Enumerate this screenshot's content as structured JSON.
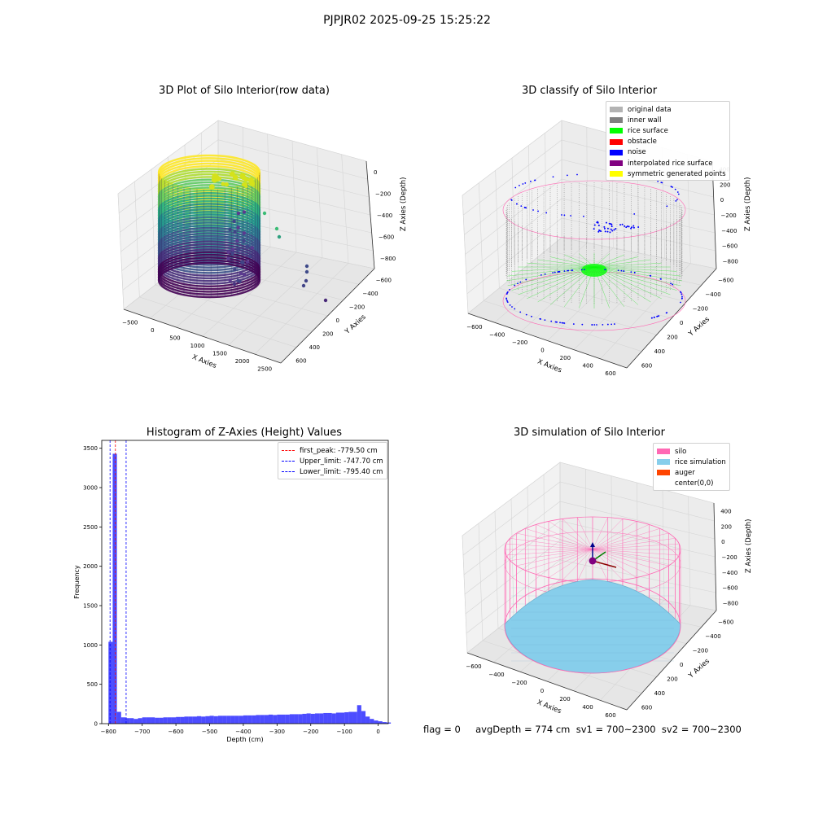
{
  "suptitle": "PJPJR02 2025-09-25 15:25:22",
  "footer": "flag = 0     avgDepth = 774 cm  sv1 = 700~2300  sv2 = 700~2300",
  "panels": {
    "raw": {
      "title": "3D Plot of Silo Interior(row data)",
      "xlabel": "X Axies",
      "ylabel": "Y Axies",
      "zlabel": "Z Axies (Depth)",
      "xticks": [
        "−500",
        "0",
        "500",
        "1000",
        "1500",
        "2000",
        "2500"
      ],
      "yticks": [
        "600",
        "400",
        "200",
        "0",
        "−200",
        "−400",
        "−600"
      ],
      "zticks": [
        "0",
        "−200",
        "−400",
        "−600",
        "−800"
      ]
    },
    "classify": {
      "title": "3D classify of Silo Interior",
      "xlabel": "X Axies",
      "ylabel": "Y Axies",
      "zlabel": "Z Axies (Depth)",
      "xticks": [
        "−600",
        "−400",
        "−200",
        "0",
        "200",
        "400",
        "600"
      ],
      "yticks": [
        "600",
        "400",
        "200",
        "0",
        "−200",
        "−400",
        "−600"
      ],
      "zticks": [
        "400",
        "200",
        "0",
        "−200",
        "−400",
        "−600",
        "−800"
      ],
      "legend": [
        {
          "label": "original data",
          "color": "#b3b3b3"
        },
        {
          "label": "inner wall",
          "color": "#808080"
        },
        {
          "label": "rice surface",
          "color": "#00ff00"
        },
        {
          "label": "obstacle",
          "color": "#ff0000"
        },
        {
          "label": "noise",
          "color": "#0000ff"
        },
        {
          "label": "interpolated rice surface",
          "color": "#800080"
        },
        {
          "label": "symmetric generated points",
          "color": "#ffff00"
        }
      ]
    },
    "simulation": {
      "title": "3D simulation of Silo Interior",
      "xlabel": "X Axies",
      "ylabel": "Y Axies",
      "zlabel": "Z Axies (Depth)",
      "xticks": [
        "−600",
        "−400",
        "−200",
        "0",
        "200",
        "400",
        "600"
      ],
      "yticks": [
        "600",
        "400",
        "200",
        "0",
        "−200",
        "−400",
        "−600"
      ],
      "zticks": [
        "400",
        "200",
        "0",
        "−200",
        "−400",
        "−600",
        "−800"
      ],
      "legend": [
        {
          "label": "silo",
          "color": "#ff69b4"
        },
        {
          "label": "rice simulation",
          "color": "#87ceeb"
        },
        {
          "label": "auger",
          "color": "#ff4500"
        },
        {
          "label": "center(0,0)",
          "color": "#ffffff"
        }
      ]
    }
  },
  "chart_data": [
    {
      "type": "scatter",
      "title": "3D Plot of Silo Interior(row data)",
      "xlabel": "X Axies",
      "ylabel": "Y Axies",
      "zlabel": "Z Axies (Depth)",
      "xlim": [
        -600,
        2500
      ],
      "ylim": [
        -700,
        700
      ],
      "zlim": [
        -900,
        50
      ],
      "colormap": "viridis",
      "grid": true
    },
    {
      "type": "scatter",
      "title": "3D classify of Silo Interior",
      "xlabel": "X Axies",
      "ylabel": "Y Axies",
      "zlabel": "Z Axies (Depth)",
      "xlim": [
        -700,
        700
      ],
      "ylim": [
        -700,
        700
      ],
      "zlim": [
        -900,
        400
      ],
      "series": [
        {
          "name": "original data",
          "color": "#b3b3b3"
        },
        {
          "name": "inner wall",
          "color": "#808080"
        },
        {
          "name": "rice surface",
          "color": "#00ff00"
        },
        {
          "name": "obstacle",
          "color": "#ff0000"
        },
        {
          "name": "noise",
          "color": "#0000ff"
        },
        {
          "name": "interpolated rice surface",
          "color": "#800080"
        },
        {
          "name": "symmetric generated points",
          "color": "#ffff00"
        }
      ],
      "legend": "top-right",
      "grid": true
    },
    {
      "type": "bar",
      "title": "Histogram of Z-Axies (Height) Values",
      "xlabel": "Depth (cm)",
      "ylabel": "Frequency",
      "xlim": [
        -820,
        30
      ],
      "ylim": [
        0,
        3600
      ],
      "xticks": [
        -800,
        -700,
        -600,
        -500,
        -400,
        -300,
        -200,
        -100,
        0
      ],
      "yticks": [
        0,
        500,
        1000,
        1500,
        2000,
        2500,
        3000,
        3500
      ],
      "bin_width": 12.5,
      "bin_start": -800,
      "values": [
        1040,
        3430,
        150,
        80,
        70,
        70,
        60,
        70,
        80,
        80,
        80,
        75,
        75,
        80,
        80,
        80,
        85,
        85,
        90,
        90,
        90,
        95,
        90,
        95,
        100,
        95,
        100,
        100,
        100,
        100,
        100,
        100,
        105,
        105,
        105,
        110,
        110,
        110,
        115,
        110,
        115,
        115,
        115,
        120,
        120,
        120,
        125,
        130,
        125,
        130,
        130,
        135,
        135,
        130,
        140,
        140,
        145,
        150,
        150,
        235,
        160,
        90,
        60,
        40,
        30,
        20,
        15
      ],
      "color": "#0000ff",
      "vlines": [
        {
          "label": "first_peak: -779.50 cm",
          "value": -779.5,
          "color": "#ff0000"
        },
        {
          "label": "Upper_limit: -747.70 cm",
          "value": -747.7,
          "color": "#0000ff"
        },
        {
          "label": "Lower_limit: -795.40 cm",
          "value": -795.4,
          "color": "#0000ff"
        }
      ],
      "legend": "top-right"
    },
    {
      "type": "scatter",
      "title": "3D simulation of Silo Interior",
      "xlabel": "X Axies",
      "ylabel": "Y Axies",
      "zlabel": "Z Axies (Depth)",
      "xlim": [
        -700,
        700
      ],
      "ylim": [
        -700,
        700
      ],
      "zlim": [
        -900,
        450
      ],
      "series": [
        {
          "name": "silo",
          "color": "#ff69b4"
        },
        {
          "name": "rice simulation",
          "color": "#87ceeb"
        },
        {
          "name": "auger",
          "color": "#ff4500"
        },
        {
          "name": "center(0,0)",
          "color": "#ffffff"
        }
      ],
      "legend": "top-right",
      "grid": true
    }
  ]
}
